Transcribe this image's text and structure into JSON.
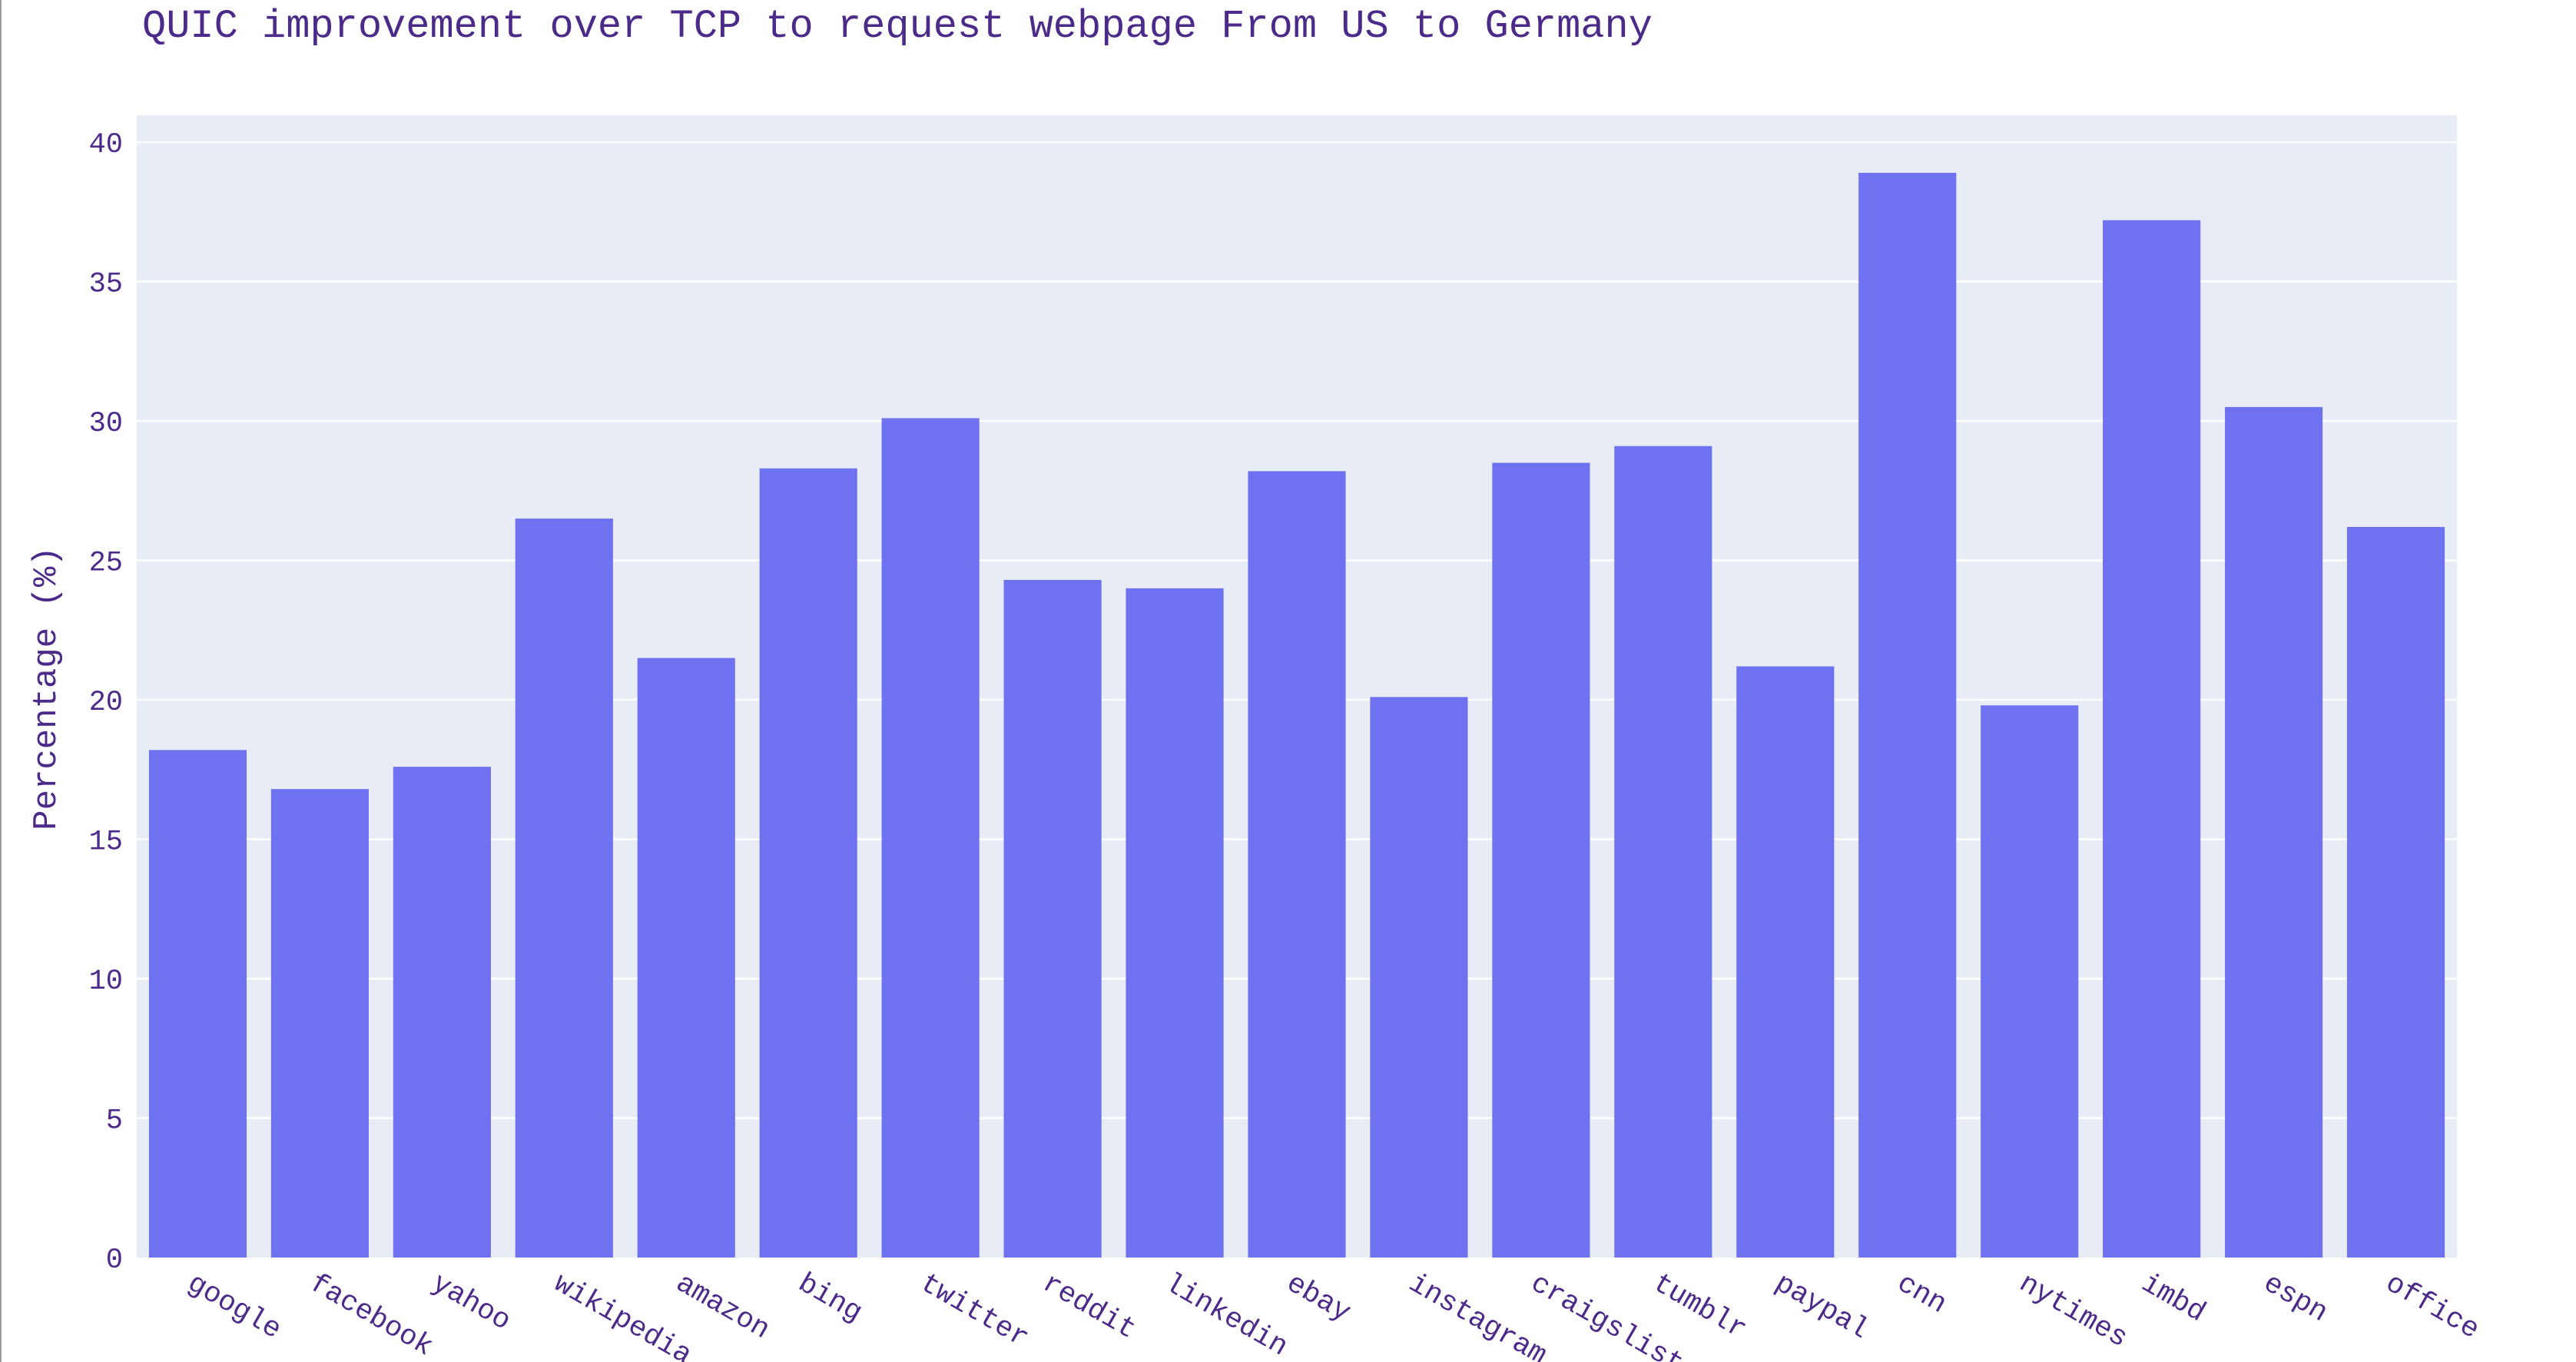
{
  "chart_data": {
    "type": "bar",
    "title": "QUIC improvement over TCP to request webpage From US to Germany",
    "xlabel": "",
    "ylabel": "Percentage (%)",
    "categories": [
      "google",
      "facebook",
      "yahoo",
      "wikipedia",
      "amazon",
      "bing",
      "twitter",
      "reddit",
      "linkedin",
      "ebay",
      "instagram",
      "craigslist",
      "tumblr",
      "paypal",
      "cnn",
      "nytimes",
      "imbd",
      "espn",
      "office"
    ],
    "values": [
      18.2,
      16.8,
      17.6,
      26.5,
      21.5,
      28.3,
      30.1,
      24.3,
      24.0,
      28.2,
      20.1,
      28.5,
      29.1,
      21.2,
      38.9,
      19.8,
      37.2,
      30.5,
      26.2
    ],
    "ylim": [
      0,
      40
    ],
    "yticks": [
      0,
      5,
      10,
      15,
      20,
      25,
      30,
      35,
      40
    ],
    "grid": true,
    "legend": "none",
    "colors": {
      "bar": "#6e72f0",
      "plot_background": "#e8ecf5",
      "text": "#4b2a8a"
    }
  }
}
